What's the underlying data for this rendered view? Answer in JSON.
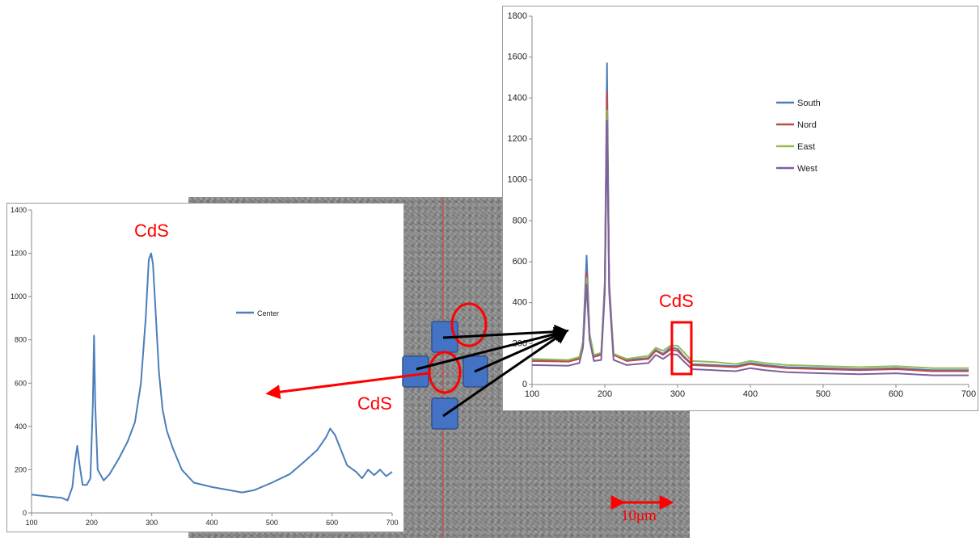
{
  "image": {
    "annotation_label": "CdS",
    "scale_bar_label": "10μm",
    "colors": {
      "annotation": "#ff0000",
      "marker": "#4472c4"
    }
  },
  "chart_data": [
    {
      "type": "line",
      "id": "center",
      "xlim": [
        100,
        700
      ],
      "ylim": [
        0,
        1400
      ],
      "x_ticks": [
        100,
        200,
        300,
        400,
        500,
        600,
        700
      ],
      "y_ticks": [
        0,
        200,
        400,
        600,
        800,
        1000,
        1200,
        1400
      ],
      "grid": false,
      "legend_position": "right",
      "annotation": "CdS",
      "series": [
        {
          "name": "Center",
          "color": "#4a7ebb",
          "points": [
            [
              100,
              85
            ],
            [
              130,
              75
            ],
            [
              150,
              70
            ],
            [
              160,
              58
            ],
            [
              168,
              120
            ],
            [
              172,
              230
            ],
            [
              176,
              310
            ],
            [
              180,
              220
            ],
            [
              185,
              130
            ],
            [
              192,
              130
            ],
            [
              198,
              160
            ],
            [
              202,
              500
            ],
            [
              204,
              820
            ],
            [
              206,
              500
            ],
            [
              210,
              200
            ],
            [
              220,
              150
            ],
            [
              230,
              180
            ],
            [
              245,
              250
            ],
            [
              260,
              330
            ],
            [
              272,
              420
            ],
            [
              282,
              600
            ],
            [
              290,
              900
            ],
            [
              295,
              1170
            ],
            [
              299,
              1200
            ],
            [
              302,
              1150
            ],
            [
              307,
              900
            ],
            [
              312,
              650
            ],
            [
              318,
              480
            ],
            [
              325,
              380
            ],
            [
              335,
              300
            ],
            [
              350,
              200
            ],
            [
              370,
              140
            ],
            [
              400,
              120
            ],
            [
              430,
              105
            ],
            [
              450,
              95
            ],
            [
              470,
              105
            ],
            [
              500,
              140
            ],
            [
              530,
              180
            ],
            [
              555,
              240
            ],
            [
              575,
              290
            ],
            [
              590,
              350
            ],
            [
              597,
              390
            ],
            [
              605,
              360
            ],
            [
              615,
              290
            ],
            [
              625,
              220
            ],
            [
              640,
              190
            ],
            [
              650,
              160
            ],
            [
              660,
              200
            ],
            [
              670,
              175
            ],
            [
              680,
              200
            ],
            [
              690,
              170
            ],
            [
              700,
              190
            ]
          ]
        }
      ]
    },
    {
      "type": "line",
      "id": "directions",
      "xlim": [
        100,
        700
      ],
      "ylim": [
        0,
        1800
      ],
      "x_ticks": [
        100,
        200,
        300,
        400,
        500,
        600,
        700
      ],
      "y_ticks": [
        0,
        200,
        400,
        600,
        800,
        1000,
        1200,
        1400,
        1600,
        1800
      ],
      "grid": false,
      "legend_position": "right",
      "annotation": "CdS",
      "highlight_x_range": [
        295,
        318
      ],
      "series": [
        {
          "name": "South",
          "color": "#4a7ebb",
          "points": [
            [
              100,
              120
            ],
            [
              150,
              118
            ],
            [
              165,
              130
            ],
            [
              170,
              210
            ],
            [
              175,
              630
            ],
            [
              179,
              250
            ],
            [
              185,
              140
            ],
            [
              195,
              150
            ],
            [
              200,
              500
            ],
            [
              203,
              1570
            ],
            [
              206,
              500
            ],
            [
              212,
              150
            ],
            [
              230,
              120
            ],
            [
              260,
              130
            ],
            [
              270,
              170
            ],
            [
              280,
              150
            ],
            [
              290,
              180
            ],
            [
              300,
              175
            ],
            [
              308,
              140
            ],
            [
              320,
              100
            ],
            [
              350,
              95
            ],
            [
              380,
              90
            ],
            [
              400,
              105
            ],
            [
              420,
              95
            ],
            [
              450,
              85
            ],
            [
              500,
              80
            ],
            [
              550,
              75
            ],
            [
              600,
              80
            ],
            [
              650,
              70
            ],
            [
              700,
              70
            ]
          ]
        },
        {
          "name": "Nord",
          "color": "#be4b48",
          "points": [
            [
              100,
              115
            ],
            [
              150,
              112
            ],
            [
              165,
              125
            ],
            [
              170,
              200
            ],
            [
              175,
              550
            ],
            [
              179,
              240
            ],
            [
              185,
              135
            ],
            [
              195,
              145
            ],
            [
              200,
              480
            ],
            [
              203,
              1430
            ],
            [
              206,
              480
            ],
            [
              212,
              145
            ],
            [
              230,
              115
            ],
            [
              260,
              125
            ],
            [
              270,
              165
            ],
            [
              280,
              145
            ],
            [
              290,
              170
            ],
            [
              300,
              165
            ],
            [
              308,
              135
            ],
            [
              320,
              95
            ],
            [
              350,
              90
            ],
            [
              380,
              85
            ],
            [
              400,
              100
            ],
            [
              420,
              90
            ],
            [
              450,
              80
            ],
            [
              500,
              75
            ],
            [
              550,
              70
            ],
            [
              600,
              75
            ],
            [
              650,
              65
            ],
            [
              700,
              65
            ]
          ]
        },
        {
          "name": "East",
          "color": "#98b954",
          "points": [
            [
              100,
              125
            ],
            [
              150,
              120
            ],
            [
              165,
              135
            ],
            [
              170,
              205
            ],
            [
              175,
              520
            ],
            [
              179,
              245
            ],
            [
              185,
              145
            ],
            [
              195,
              155
            ],
            [
              200,
              470
            ],
            [
              203,
              1340
            ],
            [
              206,
              470
            ],
            [
              212,
              150
            ],
            [
              230,
              125
            ],
            [
              260,
              140
            ],
            [
              270,
              180
            ],
            [
              280,
              165
            ],
            [
              290,
              190
            ],
            [
              300,
              190
            ],
            [
              308,
              160
            ],
            [
              320,
              115
            ],
            [
              350,
              110
            ],
            [
              380,
              100
            ],
            [
              400,
              115
            ],
            [
              420,
              105
            ],
            [
              450,
              95
            ],
            [
              500,
              90
            ],
            [
              550,
              85
            ],
            [
              600,
              90
            ],
            [
              650,
              80
            ],
            [
              700,
              80
            ]
          ]
        },
        {
          "name": "West",
          "color": "#7d60a0",
          "points": [
            [
              100,
              95
            ],
            [
              150,
              92
            ],
            [
              165,
              105
            ],
            [
              170,
              180
            ],
            [
              175,
              490
            ],
            [
              179,
              220
            ],
            [
              185,
              115
            ],
            [
              195,
              120
            ],
            [
              200,
              450
            ],
            [
              203,
              1290
            ],
            [
              206,
              450
            ],
            [
              212,
              120
            ],
            [
              230,
              95
            ],
            [
              260,
              105
            ],
            [
              270,
              145
            ],
            [
              280,
              125
            ],
            [
              290,
              150
            ],
            [
              300,
              145
            ],
            [
              308,
              115
            ],
            [
              320,
              75
            ],
            [
              350,
              70
            ],
            [
              380,
              65
            ],
            [
              400,
              80
            ],
            [
              420,
              70
            ],
            [
              450,
              60
            ],
            [
              500,
              55
            ],
            [
              550,
              50
            ],
            [
              600,
              55
            ],
            [
              650,
              45
            ],
            [
              700,
              45
            ]
          ]
        }
      ]
    }
  ]
}
